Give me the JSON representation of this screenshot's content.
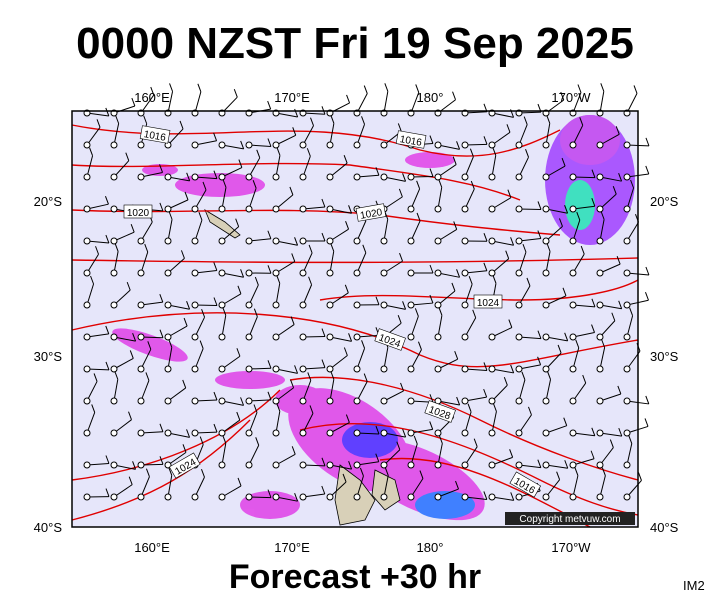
{
  "header": {
    "title": "0000 NZST Fri 19 Sep 2025"
  },
  "map": {
    "top_labels": [
      "160°E",
      "170°E",
      "180°",
      "170°W"
    ],
    "bottom_labels": [
      "160°E",
      "170°E",
      "180°",
      "170°W"
    ],
    "left_labels": [
      "20°S",
      "30°S",
      "40°S"
    ],
    "right_labels": [
      "20°S",
      "30°S",
      "40°S"
    ],
    "isobar_labels": [
      "1016",
      "1016",
      "1020",
      "1020",
      "1024",
      "1024",
      "1028",
      "1024",
      "1016"
    ],
    "copyright": "Copyright metvuw.com"
  },
  "footer": {
    "forecast": "Forecast +30 hr",
    "id": "IM2"
  }
}
